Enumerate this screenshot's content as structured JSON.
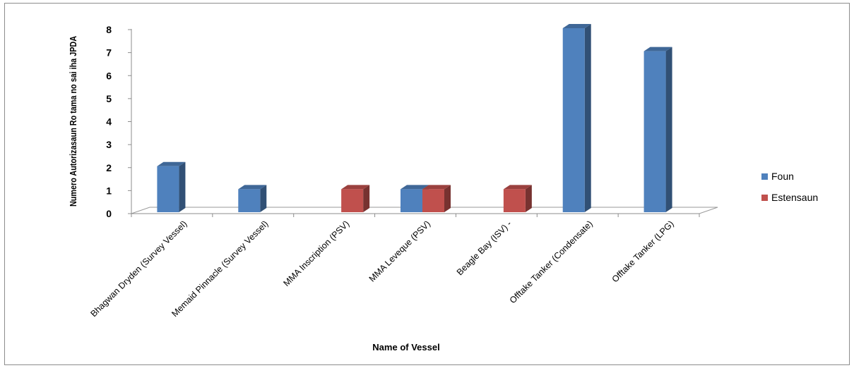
{
  "chart_data": {
    "type": "bar",
    "xlabel": "Name of Vessel",
    "ylabel": "Numero Autorizasaun Ro tama no sai iha JPDA",
    "ylim": [
      0,
      8
    ],
    "yticks": [
      0,
      1,
      2,
      3,
      4,
      5,
      6,
      7,
      8
    ],
    "categories": [
      "Bhagwan Dryden (Survey Vessel)",
      "Memaid Pinnacle (Survey Vessel)",
      "MMA Inscription (PSV)",
      "MMA Leveque (PSV)",
      "Beagle Bay (ISV) -",
      "Offtake Tanker (Condensate)",
      "Offtake Tanker (LPG)"
    ],
    "series": [
      {
        "name": "Foun",
        "color": "#4f81bd",
        "values": [
          2,
          1,
          0,
          1,
          0,
          8,
          7
        ]
      },
      {
        "name": "Estensaun",
        "color": "#c0504d",
        "values": [
          0,
          0,
          1,
          1,
          1,
          0,
          0
        ]
      }
    ],
    "legend_position": "right",
    "grid": false
  }
}
